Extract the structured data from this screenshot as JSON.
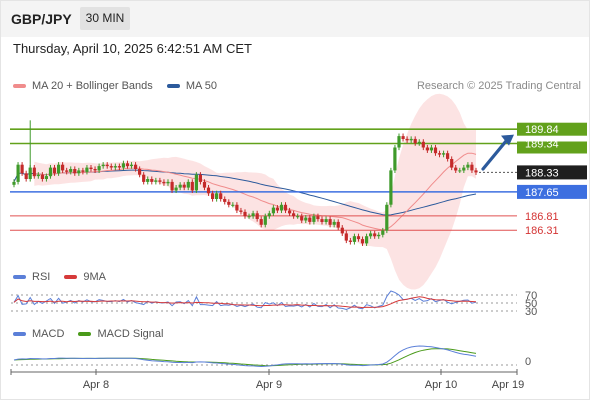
{
  "header": {
    "symbol": "GBP/JPY",
    "timeframe": "30 MIN",
    "datetime": "Thursday, April 10, 2025 6:42:51 AM CET"
  },
  "credit": "Research © 2025 Trading Central",
  "legend_main": [
    {
      "label": "MA 20 + Bollinger Bands",
      "color": "#f08c8c"
    },
    {
      "label": "MA 50",
      "color": "#2c5a9c"
    }
  ],
  "legend_rsi": [
    {
      "label": "RSI",
      "color": "#5b7fd8"
    },
    {
      "label": "9MA",
      "color": "#d63a3a"
    }
  ],
  "legend_macd": [
    {
      "label": "MACD",
      "color": "#5b7fd8"
    },
    {
      "label": "MACD Signal",
      "color": "#4a9a1a"
    }
  ],
  "colors": {
    "up": "#3f9a2a",
    "down": "#c42a2a",
    "bb_fill": "#fbdede",
    "ma20": "#f08c8c",
    "ma50": "#2c5a9c",
    "resistance": "#62a11b",
    "pivot": "#3d6fe0",
    "support": "#e05050",
    "arrow": "#2c5a9c",
    "axis": "#555555"
  },
  "chart_data": [
    {
      "type": "candlestick",
      "x_labels": [
        "Apr 8",
        "Apr 9",
        "Apr 10",
        "Apr 19"
      ],
      "ylim": [
        185.2,
        191.0
      ],
      "levels": {
        "resistance": [
          189.84,
          189.34
        ],
        "current": 188.33,
        "pivot": 187.65,
        "support": [
          186.81,
          186.31
        ]
      },
      "level_labels": [
        "189.84",
        "189.34",
        "188.33",
        "187.65",
        "186.81",
        "186.31"
      ],
      "closes": [
        188.0,
        188.6,
        188.3,
        188.1,
        188.5,
        188.2,
        188.25,
        188.1,
        188.2,
        188.5,
        188.3,
        188.6,
        188.4,
        188.35,
        188.45,
        188.3,
        188.4,
        188.35,
        188.5,
        188.45,
        188.4,
        188.55,
        188.6,
        188.55,
        188.5,
        188.55,
        188.5,
        188.65,
        188.55,
        188.6,
        188.45,
        188.25,
        188.0,
        188.1,
        188.0,
        188.05,
        188.0,
        187.95,
        188.0,
        187.7,
        187.8,
        187.9,
        187.8,
        188.0,
        187.7,
        188.25,
        188.0,
        187.8,
        187.6,
        187.4,
        187.6,
        187.4,
        187.3,
        187.2,
        187.2,
        187.0,
        186.95,
        186.8,
        186.8,
        186.9,
        186.7,
        186.5,
        186.8,
        186.9,
        187.1,
        187.0,
        187.2,
        187.0,
        186.9,
        186.8,
        186.8,
        186.65,
        186.75,
        186.6,
        186.8,
        186.7,
        186.6,
        186.7,
        186.5,
        186.6,
        186.4,
        186.2,
        185.95,
        185.9,
        186.1,
        186.0,
        185.85,
        186.1,
        186.2,
        186.1,
        186.15,
        186.3,
        187.2,
        188.4,
        189.2,
        189.6,
        189.5,
        189.45,
        189.5,
        189.35,
        189.4,
        189.2,
        189.1,
        189.2,
        189.0,
        188.95,
        189.0,
        188.8,
        188.5,
        188.4,
        188.4,
        188.5,
        188.6,
        188.4,
        188.33
      ],
      "x_range": [
        14,
        476
      ],
      "rsi_levels": [
        70,
        50,
        30
      ],
      "macd_levels": [
        0
      ]
    }
  ]
}
